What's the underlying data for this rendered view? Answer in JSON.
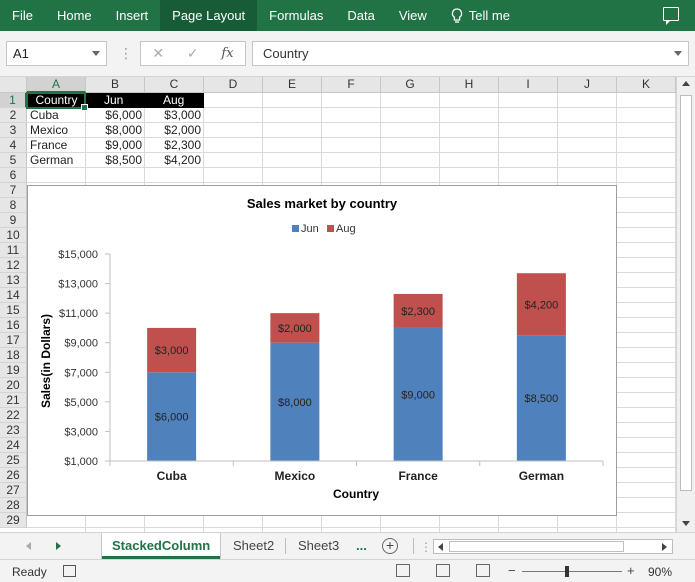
{
  "ribbon": {
    "tabs": [
      "File",
      "Home",
      "Insert",
      "Page Layout",
      "Formulas",
      "Data",
      "View"
    ],
    "active_tab": "Page Layout",
    "tell_me": "Tell me"
  },
  "formula_bar": {
    "name_box": "A1",
    "cancel_symbol": "✕",
    "enter_symbol": "✓",
    "fx_label": "fx",
    "formula": "Country"
  },
  "columns": [
    "A",
    "B",
    "C",
    "D",
    "E",
    "F",
    "G",
    "H",
    "I",
    "J",
    "K"
  ],
  "rows": [
    "1",
    "2",
    "3",
    "4",
    "5",
    "6",
    "7",
    "8",
    "9",
    "10",
    "11",
    "12",
    "13",
    "14",
    "15",
    "16",
    "17",
    "18",
    "19",
    "20",
    "21",
    "22",
    "23",
    "24",
    "25",
    "26",
    "27",
    "28",
    "29"
  ],
  "table": {
    "headers": [
      "Country",
      "Jun",
      "Aug"
    ],
    "rows": [
      [
        "Cuba",
        "$6,000",
        "$3,000"
      ],
      [
        "Mexico",
        "$8,000",
        "$2,000"
      ],
      [
        "France",
        "$9,000",
        "$2,300"
      ],
      [
        "German",
        "$8,500",
        "$4,200"
      ]
    ]
  },
  "chart_data": {
    "type": "bar",
    "stacked": true,
    "title": "Sales market by country",
    "xlabel": "Country",
    "ylabel": "Sales(in Dollars)",
    "categories": [
      "Cuba",
      "Mexico",
      "France",
      "German"
    ],
    "series": [
      {
        "name": "Jun",
        "values": [
          6000,
          8000,
          9000,
          8500
        ],
        "labels": [
          "$6,000",
          "$8,000",
          "$9,000",
          "$8,500"
        ],
        "color": "#4f81bd"
      },
      {
        "name": "Aug",
        "values": [
          3000,
          2000,
          2300,
          4200
        ],
        "labels": [
          "$3,000",
          "$2,000",
          "$2,300",
          "$4,200"
        ],
        "color": "#c0504d"
      }
    ],
    "ylim": [
      1000,
      15000
    ],
    "yticks": [
      1000,
      3000,
      5000,
      7000,
      9000,
      11000,
      13000,
      15000
    ],
    "ytick_labels": [
      "$1,000",
      "$3,000",
      "$5,000",
      "$7,000",
      "$9,000",
      "$11,000",
      "$13,000",
      "$15,000"
    ],
    "legend_position": "top",
    "grid": false
  },
  "sheet_tabs": [
    "StackedColumn",
    "Sheet2",
    "Sheet3"
  ],
  "active_sheet": "StackedColumn",
  "more_tabs": "...",
  "add_sheet": "+",
  "status": {
    "ready": "Ready",
    "zoom_minus": "−",
    "zoom_plus": "+",
    "zoom": "90%"
  }
}
